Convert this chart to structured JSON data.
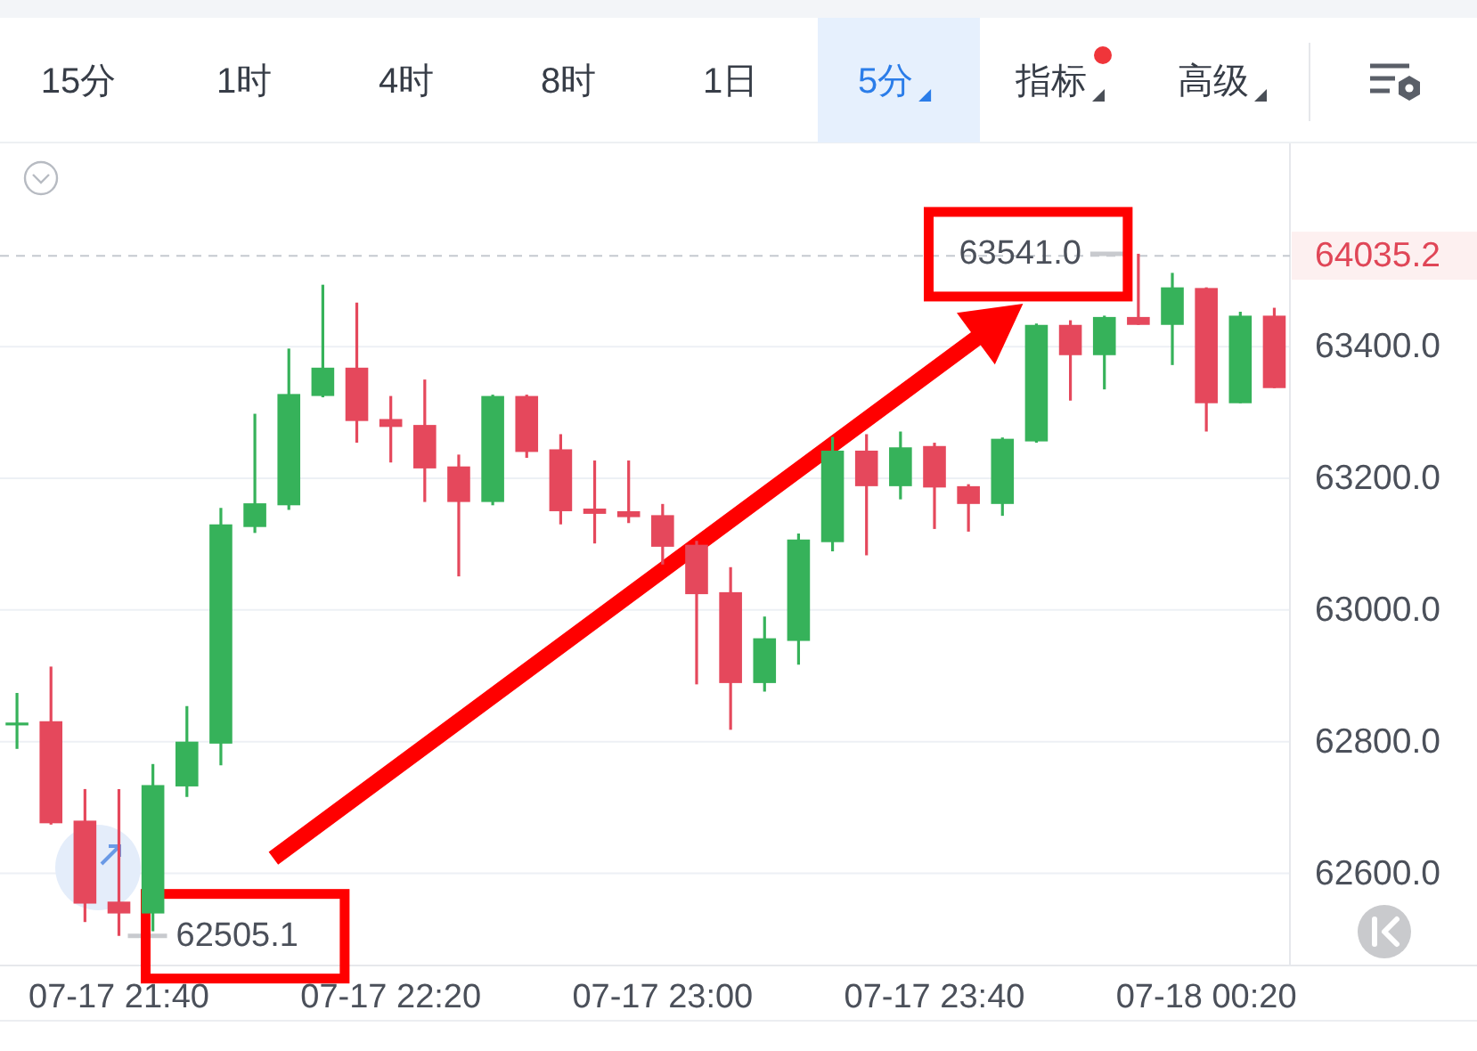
{
  "chart_data": {
    "type": "candlestick",
    "categories": [
      null,
      null,
      null,
      "07-17 21:40",
      null,
      null,
      null,
      null,
      null,
      null,
      null,
      "07-17 22:20",
      null,
      null,
      null,
      null,
      null,
      null,
      null,
      "07-17 23:00",
      null,
      null,
      null,
      null,
      null,
      null,
      null,
      "07-17 23:40",
      null,
      null,
      null,
      null,
      null,
      null,
      null,
      "07-18 00:20",
      null,
      null
    ],
    "ohlc": [
      [
        62825,
        62874,
        62789,
        62829
      ],
      [
        62831,
        62914,
        62674,
        62676
      ],
      [
        62680,
        62728,
        62526,
        62554
      ],
      [
        62557,
        62728,
        62505.1,
        62539
      ],
      [
        62539,
        62766,
        62512,
        62734
      ],
      [
        62732,
        62854,
        62716,
        62800
      ],
      [
        62797,
        63155,
        62764,
        63130
      ],
      [
        63126,
        63298,
        63117,
        63162
      ],
      [
        63159,
        63397,
        63152,
        63328
      ],
      [
        63325,
        63494,
        63323,
        63368
      ],
      [
        63368,
        63467,
        63254,
        63287
      ],
      [
        63290,
        63325,
        63224,
        63278
      ],
      [
        63281,
        63350,
        63164,
        63215
      ],
      [
        63218,
        63236,
        63051,
        63164
      ],
      [
        63164,
        63327,
        63159,
        63325
      ],
      [
        63325,
        63327,
        63231,
        63240
      ],
      [
        63244,
        63267,
        63130,
        63150
      ],
      [
        63154,
        63227,
        63101,
        63146
      ],
      [
        63150,
        63227,
        63132,
        63141
      ],
      [
        63144,
        63161,
        63069,
        63096
      ],
      [
        63099,
        63105,
        62887,
        63024
      ],
      [
        63027,
        63065,
        62818,
        62889
      ],
      [
        62889,
        62990,
        62876,
        62957
      ],
      [
        62953,
        63116,
        62917,
        63107
      ],
      [
        63103,
        63263,
        63089,
        63242
      ],
      [
        63242,
        63267,
        63083,
        63188
      ],
      [
        63188,
        63271,
        63168,
        63247
      ],
      [
        63249,
        63254,
        63123,
        63186
      ],
      [
        63188,
        63191,
        63119,
        63161
      ],
      [
        63161,
        63262,
        63143,
        63260
      ],
      [
        63256,
        63435,
        63254,
        63433
      ],
      [
        63433,
        63440,
        63318,
        63387
      ],
      [
        63387,
        63447,
        63335,
        63445
      ],
      [
        63445,
        63541,
        63433,
        63433
      ],
      [
        63433,
        63512,
        63372,
        63490
      ],
      [
        63489,
        63490,
        63271,
        63314
      ],
      [
        63314,
        63453,
        63314,
        63447
      ],
      [
        63447,
        63459,
        63337,
        63337
      ]
    ],
    "colors": [
      "#36b25a",
      "#e5485c",
      "#e5485c",
      "#e5485c",
      "#36b25a",
      "#36b25a",
      "#36b25a",
      "#36b25a",
      "#36b25a",
      "#36b25a",
      "#e5485c",
      "#e5485c",
      "#e5485c",
      "#e5485c",
      "#36b25a",
      "#e5485c",
      "#e5485c",
      "#e5485c",
      "#e5485c",
      "#e5485c",
      "#e5485c",
      "#e5485c",
      "#36b25a",
      "#36b25a",
      "#36b25a",
      "#e5485c",
      "#36b25a",
      "#e5485c",
      "#e5485c",
      "#36b25a",
      "#36b25a",
      "#e5485c",
      "#36b25a",
      "#e5485c",
      "#36b25a",
      "#e5485c",
      "#36b25a",
      "#e5485c"
    ],
    "ylim": [
      62460,
      63710
    ],
    "yticks": [
      {
        "value": 62600,
        "label": "62600.0"
      },
      {
        "value": 62800,
        "label": "62800.0"
      },
      {
        "value": 63000,
        "label": "63000.0"
      },
      {
        "value": 63200,
        "label": "63200.0"
      },
      {
        "value": 63400,
        "label": "63400.0"
      }
    ],
    "grid": "y",
    "ref_lines": [
      {
        "axis": "y",
        "value": 63538,
        "color": "#c5c9cf",
        "line_style": "dashed"
      }
    ],
    "annotations": [
      "15分",
      "1时",
      "4时",
      "8时",
      "1日",
      "5分",
      "指标",
      "高级",
      "64035.2",
      {
        "text": "62505.1",
        "x": "07-17 21:40",
        "y": 62505.1
      },
      {
        "text": "63541.0",
        "y": 63541
      }
    ]
  }
}
